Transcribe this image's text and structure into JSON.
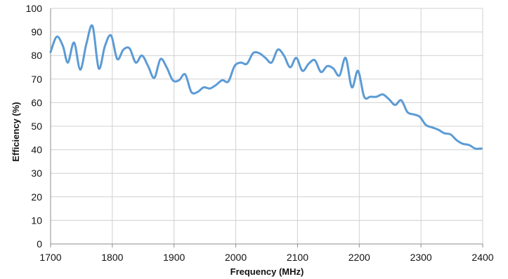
{
  "chart_data": {
    "type": "line",
    "title": "",
    "xlabel": "Frequency (MHz)",
    "ylabel": "Efficiency (%)",
    "xlim": [
      1700,
      2400
    ],
    "ylim": [
      0,
      100
    ],
    "x_ticks": [
      1700,
      1800,
      1900,
      2000,
      2100,
      2200,
      2300,
      2400
    ],
    "y_ticks": [
      0,
      10,
      20,
      30,
      40,
      50,
      60,
      70,
      80,
      90,
      100
    ],
    "grid": true,
    "legend": "none",
    "line_color": "#5b9bd5",
    "series": [
      {
        "values": [
          [
            1700,
            81.5
          ],
          [
            1710,
            88
          ],
          [
            1720,
            84
          ],
          [
            1728,
            77
          ],
          [
            1738,
            85.5
          ],
          [
            1748,
            74
          ],
          [
            1758,
            85
          ],
          [
            1768,
            92.5
          ],
          [
            1778,
            74.5
          ],
          [
            1788,
            84
          ],
          [
            1798,
            88.5
          ],
          [
            1808,
            78.5
          ],
          [
            1818,
            82.5
          ],
          [
            1828,
            83
          ],
          [
            1838,
            77
          ],
          [
            1848,
            80
          ],
          [
            1858,
            75.5
          ],
          [
            1868,
            70.5
          ],
          [
            1878,
            78.5
          ],
          [
            1888,
            75
          ],
          [
            1898,
            69.5
          ],
          [
            1908,
            69.5
          ],
          [
            1918,
            72
          ],
          [
            1928,
            64.5
          ],
          [
            1938,
            64.5
          ],
          [
            1948,
            66.5
          ],
          [
            1958,
            66
          ],
          [
            1968,
            67.5
          ],
          [
            1978,
            69.5
          ],
          [
            1988,
            69
          ],
          [
            1998,
            75.5
          ],
          [
            2008,
            77
          ],
          [
            2018,
            76.5
          ],
          [
            2028,
            81
          ],
          [
            2038,
            81
          ],
          [
            2048,
            79
          ],
          [
            2058,
            77
          ],
          [
            2068,
            82.5
          ],
          [
            2078,
            80
          ],
          [
            2088,
            75
          ],
          [
            2098,
            79
          ],
          [
            2108,
            73.5
          ],
          [
            2118,
            76.5
          ],
          [
            2128,
            78
          ],
          [
            2138,
            73
          ],
          [
            2148,
            75.5
          ],
          [
            2158,
            74.5
          ],
          [
            2168,
            71.5
          ],
          [
            2178,
            79
          ],
          [
            2188,
            66.5
          ],
          [
            2198,
            73.5
          ],
          [
            2208,
            62.5
          ],
          [
            2218,
            62.5
          ],
          [
            2228,
            62.5
          ],
          [
            2238,
            63.5
          ],
          [
            2248,
            61.5
          ],
          [
            2258,
            59
          ],
          [
            2268,
            61
          ],
          [
            2278,
            56
          ],
          [
            2288,
            55
          ],
          [
            2298,
            54
          ],
          [
            2308,
            50.5
          ],
          [
            2318,
            49.5
          ],
          [
            2328,
            48.5
          ],
          [
            2338,
            47
          ],
          [
            2348,
            46.5
          ],
          [
            2358,
            44
          ],
          [
            2368,
            42.5
          ],
          [
            2378,
            42
          ],
          [
            2388,
            40.5
          ],
          [
            2398,
            40.5
          ]
        ]
      }
    ]
  }
}
